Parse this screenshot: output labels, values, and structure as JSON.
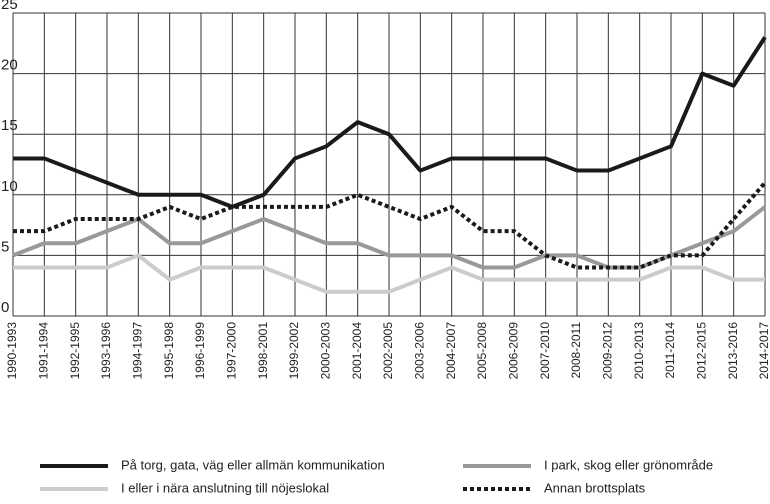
{
  "chart_data": {
    "type": "line",
    "categories": [
      "1990-1993",
      "1991-1994",
      "1992-1995",
      "1993-1996",
      "1994-1997",
      "1995-1998",
      "1996-1999",
      "1997-2000",
      "1998-2001",
      "1999-2002",
      "2000-2003",
      "2001-2004",
      "2002-2005",
      "2003-2006",
      "2004-2007",
      "2005-2008",
      "2006-2009",
      "2007-2010",
      "2008-2011",
      "2009-2012",
      "2010-2013",
      "2011-2014",
      "2012-2015",
      "2013-2016",
      "2014-2017"
    ],
    "series": [
      {
        "name": "På torg, gata, väg eller allmän kommunikation",
        "color": "#1a1a1a",
        "values": [
          13,
          13,
          12,
          11,
          10,
          10,
          10,
          9,
          10,
          13,
          14,
          16,
          15,
          12,
          13,
          13,
          13,
          13,
          12,
          12,
          13,
          14,
          20,
          19,
          23
        ]
      },
      {
        "name": "I park, skog eller grönområde",
        "color": "#999999",
        "values": [
          5,
          6,
          6,
          7,
          8,
          6,
          6,
          7,
          8,
          7,
          6,
          6,
          5,
          5,
          5,
          4,
          4,
          5,
          5,
          4,
          4,
          5,
          6,
          7,
          9
        ]
      },
      {
        "name": "I eller i nära anslutning till nöjeslokal",
        "color": "#cccccc",
        "values": [
          4,
          4,
          4,
          4,
          5,
          3,
          4,
          4,
          4,
          3,
          2,
          2,
          2,
          3,
          4,
          3,
          3,
          3,
          3,
          3,
          3,
          4,
          4,
          3,
          3
        ]
      },
      {
        "name": "Annan brottsplats",
        "color": "#1a1a1a",
        "dashed": true,
        "values": [
          7,
          7,
          8,
          8,
          8,
          9,
          8,
          9,
          9,
          9,
          9,
          10,
          9,
          8,
          9,
          7,
          7,
          5,
          4,
          4,
          4,
          5,
          5,
          8,
          11
        ]
      }
    ],
    "ylim": [
      0,
      25
    ],
    "yticks": [
      0,
      5,
      10,
      15,
      20,
      25
    ],
    "grid": true
  }
}
